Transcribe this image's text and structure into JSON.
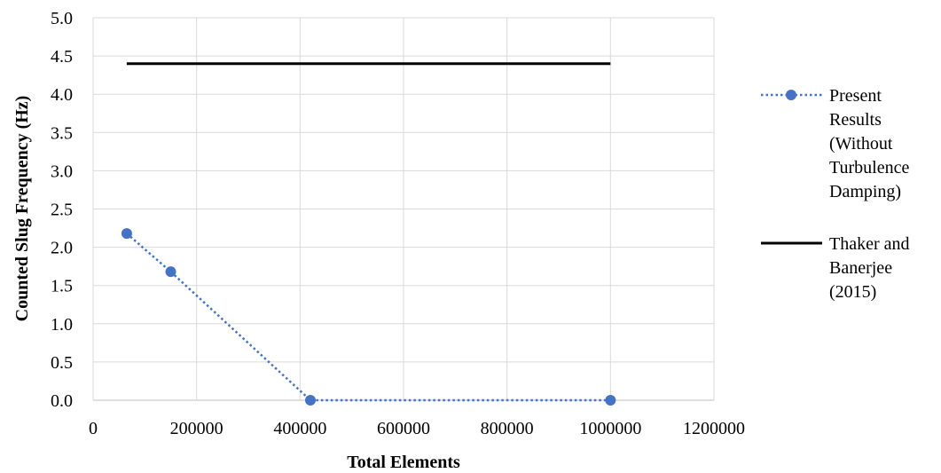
{
  "chart_data": {
    "type": "line",
    "title": "",
    "xlabel": "Total Elements",
    "ylabel": "Counted Slug Frequency (Hz)",
    "xlim": [
      0,
      1200000
    ],
    "ylim": [
      0,
      5
    ],
    "x_ticks": [
      "0",
      "200000",
      "400000",
      "600000",
      "800000",
      "1000000",
      "1200000"
    ],
    "y_ticks": [
      "0.0",
      "0.5",
      "1.0",
      "1.5",
      "2.0",
      "2.5",
      "3.0",
      "3.5",
      "4.0",
      "4.5",
      "5.0"
    ],
    "grid": true,
    "legend_position": "right",
    "series": [
      {
        "name_lines": [
          "Present",
          "Results",
          "(Without",
          "Turbulence",
          "Damping)"
        ],
        "color": "#4472C4",
        "line_style": "dotted",
        "marker": "circle",
        "points": [
          {
            "x": 65000,
            "y": 2.18
          },
          {
            "x": 150000,
            "y": 1.68
          },
          {
            "x": 420000,
            "y": 0.0
          },
          {
            "x": 1000000,
            "y": 0.0
          }
        ]
      },
      {
        "name_lines": [
          "Thaker and",
          "Banerjee",
          "(2015)"
        ],
        "color": "#000000",
        "line_style": "solid",
        "marker": "none",
        "points": [
          {
            "x": 65000,
            "y": 4.4
          },
          {
            "x": 1000000,
            "y": 4.4
          }
        ]
      }
    ]
  }
}
